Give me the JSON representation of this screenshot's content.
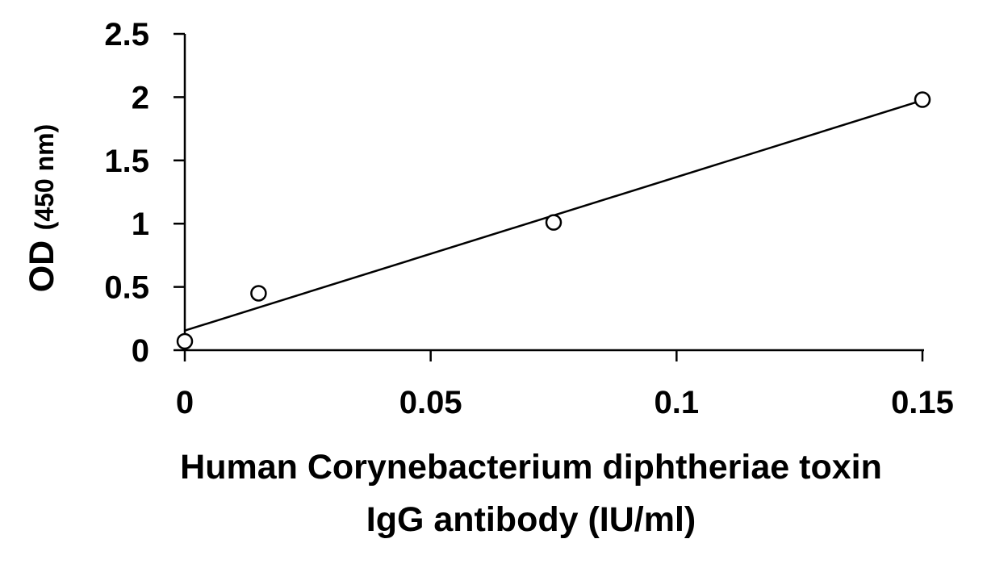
{
  "chart_data": {
    "type": "scatter",
    "title": "",
    "xlabel_line1": "Human Corynebacterium diphtheriae toxin",
    "xlabel_line2": "IgG antibody (IU/ml)",
    "ylabel_main": "OD",
    "ylabel_sub": "(450 nm)",
    "xlim": [
      0,
      0.15
    ],
    "ylim": [
      0,
      2.5
    ],
    "x_ticks": [
      0,
      0.05,
      0.1,
      0.15
    ],
    "x_tick_labels": [
      "0",
      "0.05",
      "0.1",
      "0.15"
    ],
    "y_ticks": [
      0,
      0.5,
      1,
      1.5,
      2,
      2.5
    ],
    "y_tick_labels": [
      "0",
      "0.5",
      "1",
      "1.5",
      "2",
      "2.5"
    ],
    "grid": false,
    "series": [
      {
        "x": [
          0,
          0.015,
          0.075,
          0.15
        ],
        "y": [
          0.07,
          0.45,
          1.01,
          1.98
        ],
        "marker": "open-circle",
        "color": "#000000"
      }
    ],
    "trendline": {
      "type": "linear",
      "x": [
        0,
        0.15
      ],
      "y": [
        0.155,
        1.975
      ],
      "color": "#000000"
    }
  }
}
